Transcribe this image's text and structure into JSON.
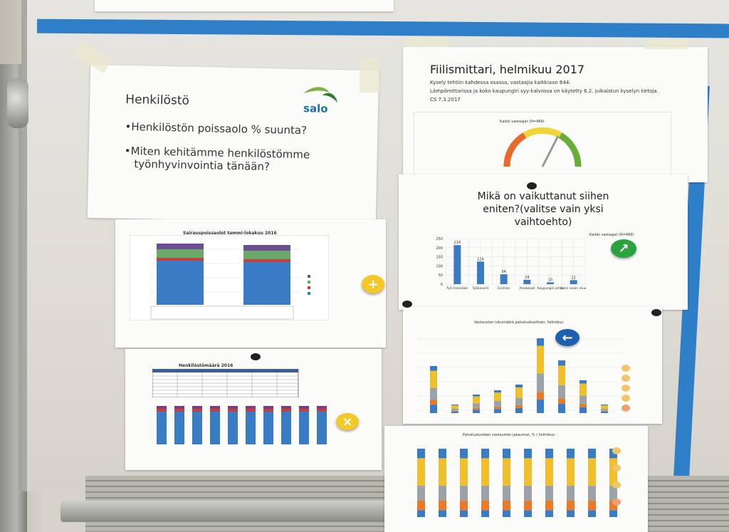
{
  "poster_henkilosto": {
    "title": "Henkilöstö",
    "logo_text": "salo",
    "bullets": [
      "•Henkilöstön poissaolo % suunta?",
      "•Miten kehitämme henkilöstömme",
      "työnhyvinvointia tänään?"
    ]
  },
  "poster_sairauspoissaolot": {
    "title": "Sairauspoissaolot tammi-lokakuu 2016"
  },
  "poster_henkilostomaara": {
    "title": "Henkilöstömäärä 2016"
  },
  "poster_fiilismittari": {
    "title": "Fiilismittari, helmikuu 2017",
    "lines": [
      "Kysely tehtiin kahdessa osassa, vastaajia kaikkiaan 644.",
      "Lämpömittarissa ja koko kaupungiri syy-kalvossa on käytetty 6.2. julkaistun kyselyn tietoja.",
      "CS 7.3.2017"
    ],
    "gauge_caption": "Kaikki vastaajat (N=469)",
    "gauge_level": 3.6
  },
  "poster_mika": {
    "title_lines": [
      "Mikä on vaikuttanut siihen",
      "eniten?(valitse vain yksi",
      "vaihtoehto)"
    ],
    "legend": "Kaikki vastaajat (N=469)",
    "chart_data": {
      "type": "bar",
      "categories": [
        "Työ itsessään",
        "Työkaverit",
        "Esimies",
        "Asiakkaat",
        "Kaupungin johto",
        "Jokin aivan muu"
      ],
      "values": [
        214,
        124,
        54,
        24,
        10,
        22
      ],
      "ylim": [
        0,
        250
      ],
      "yticks": [
        0,
        50,
        100,
        150,
        200,
        250
      ]
    }
  },
  "poster_vastausten_lukumaara": {
    "title": "Vastausten lukumäärä palvelualueittain, helmikuu"
  },
  "poster_palvelualueiden": {
    "title": "Palvelualueiden vastausten jakaumat, % / helmikuu"
  },
  "colors": {
    "blue": "#3a7cc4",
    "yellow": "#f0c02c",
    "grey": "#9aa3a8",
    "orange": "#e87a2a",
    "green": "#3aa64a"
  }
}
